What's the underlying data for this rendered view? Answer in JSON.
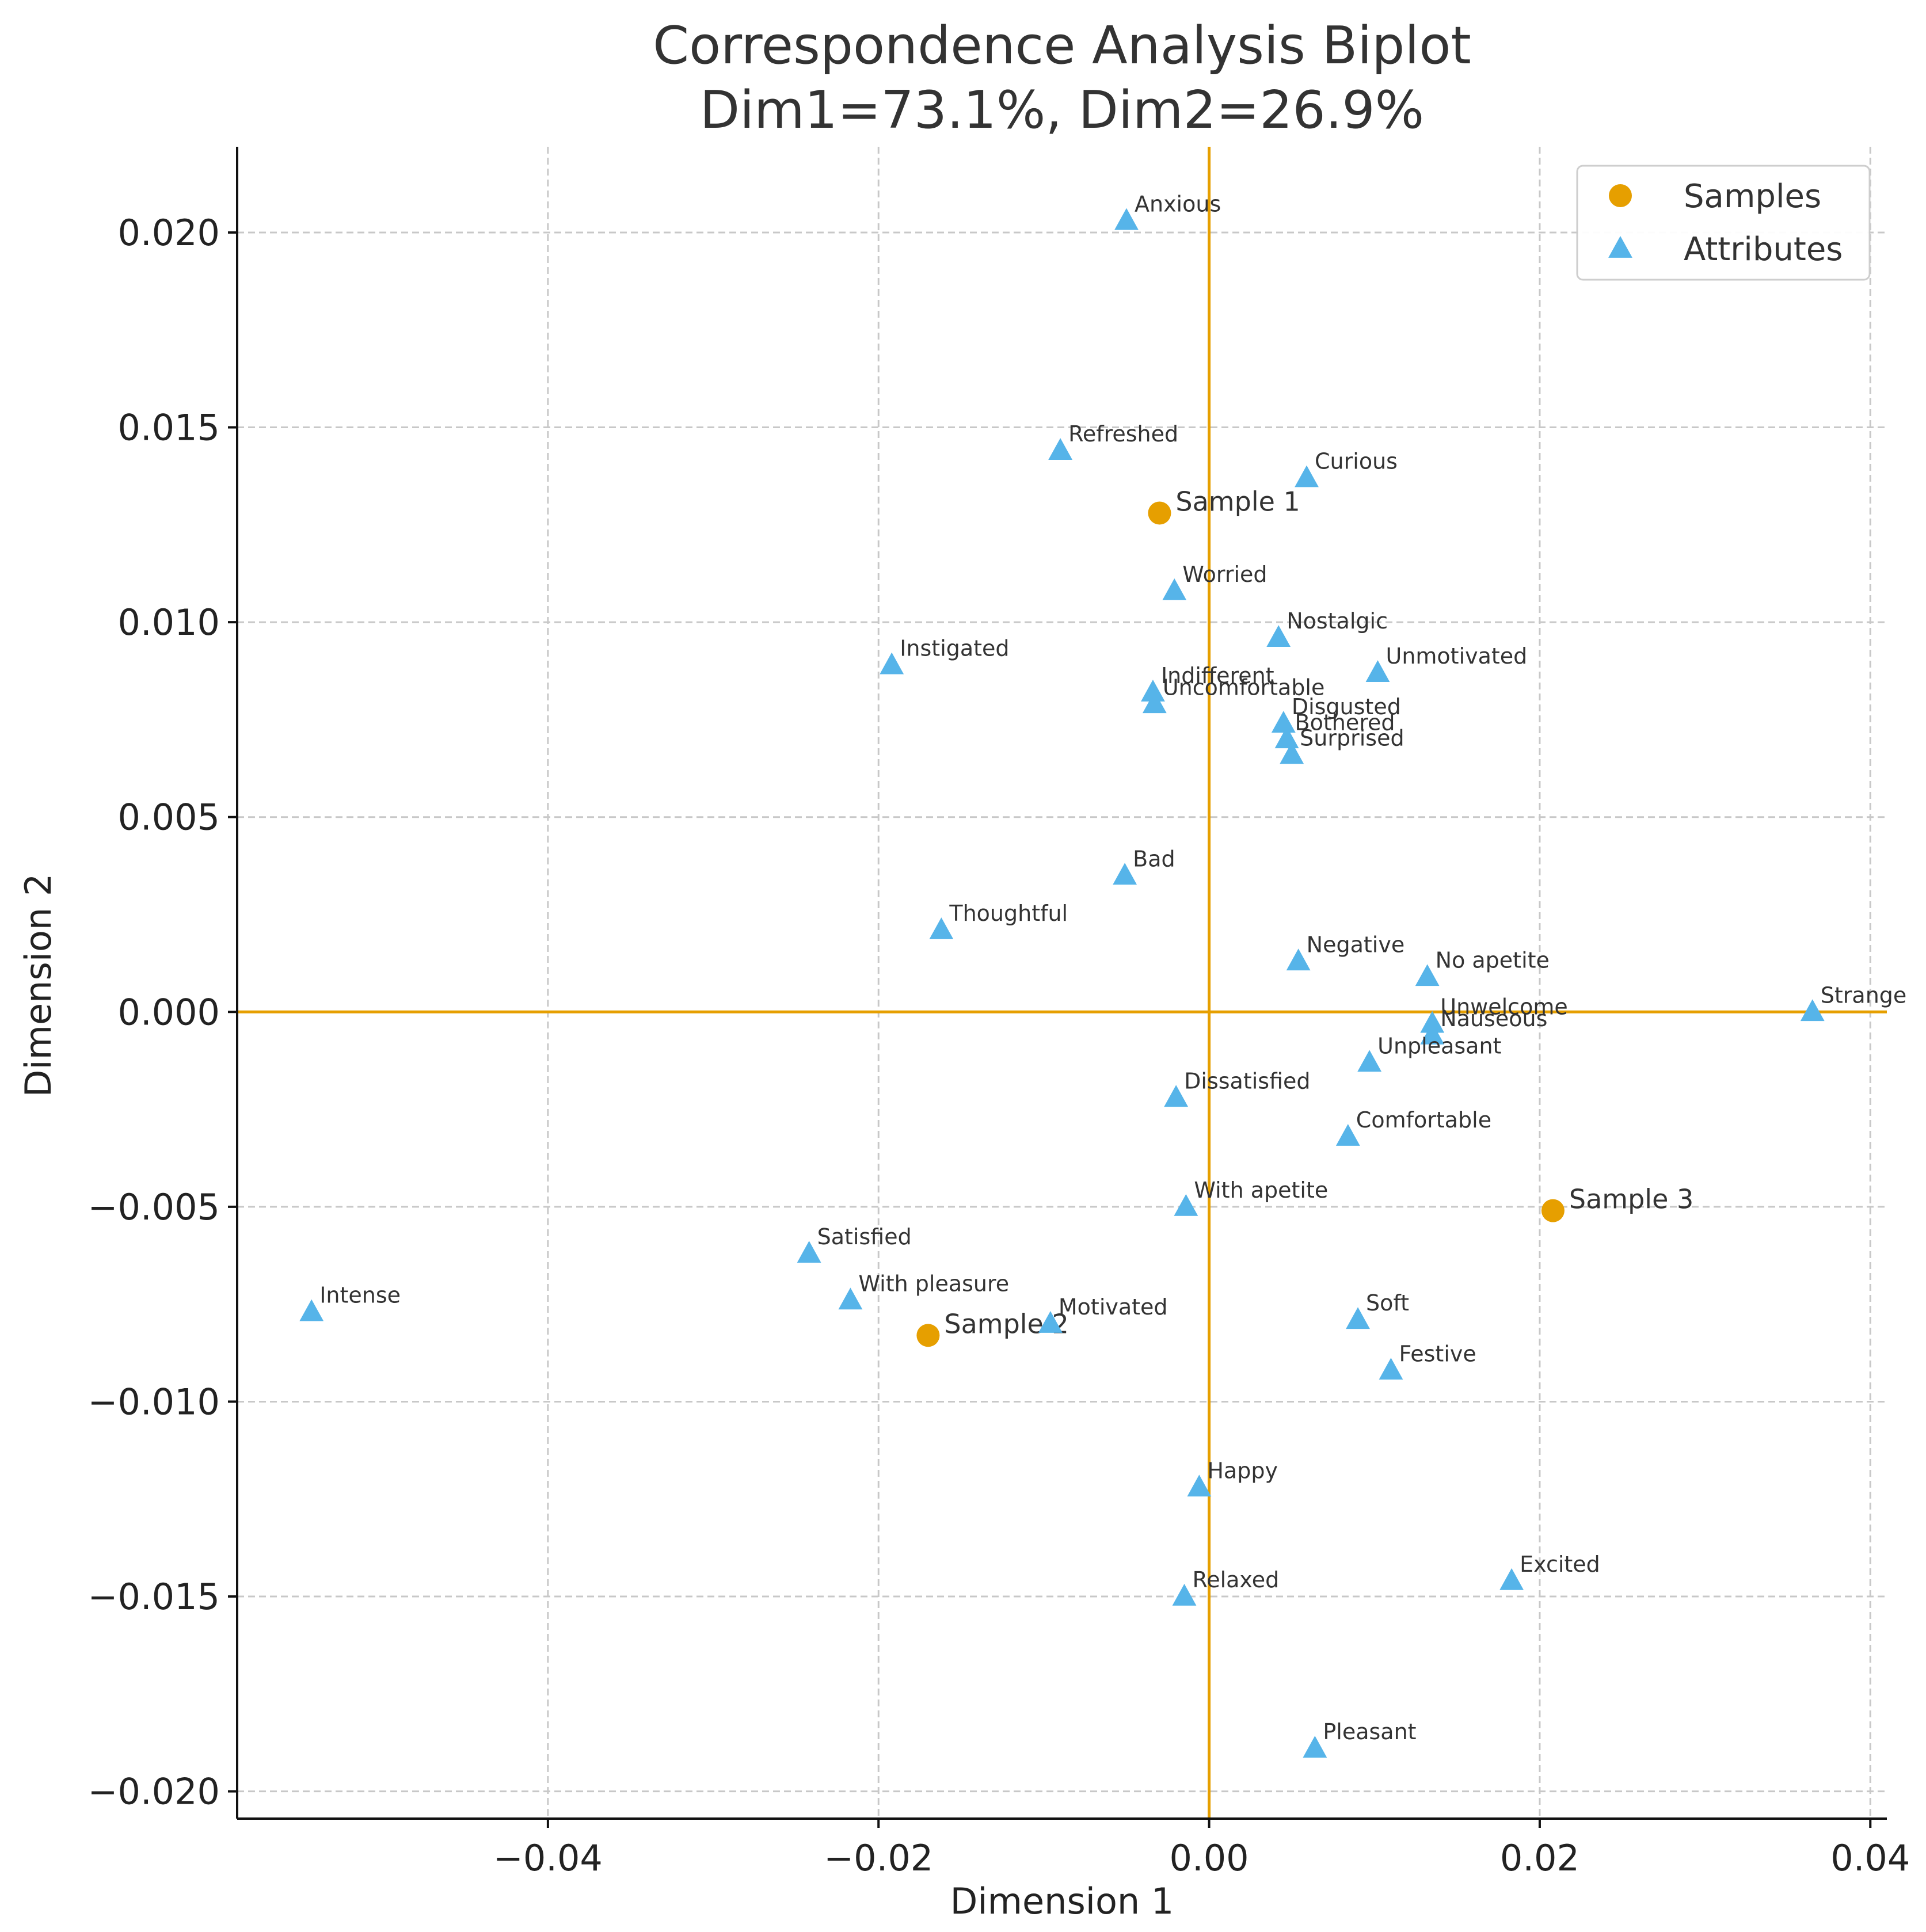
{
  "chart_data": {
    "type": "scatter",
    "title": "Correspondence Analysis Biplot",
    "subtitle": "Dim1=73.1%, Dim2=26.9%",
    "xlabel": "Dimension 1",
    "ylabel": "Dimension 2",
    "xlim": [
      -0.0588,
      0.041
    ],
    "ylim": [
      -0.0207,
      0.0222
    ],
    "xticks": [
      {
        "value": -0.04,
        "label": "−0.04"
      },
      {
        "value": -0.02,
        "label": "−0.02"
      },
      {
        "value": 0.0,
        "label": "0.00"
      },
      {
        "value": 0.02,
        "label": "0.02"
      },
      {
        "value": 0.04,
        "label": "0.04"
      }
    ],
    "yticks": [
      {
        "value": 0.02,
        "label": "0.020"
      },
      {
        "value": 0.015,
        "label": "0.015"
      },
      {
        "value": 0.01,
        "label": "0.010"
      },
      {
        "value": 0.005,
        "label": "0.005"
      },
      {
        "value": 0.0,
        "label": "0.000"
      },
      {
        "value": -0.005,
        "label": "−0.005"
      },
      {
        "value": -0.01,
        "label": "−0.010"
      },
      {
        "value": -0.015,
        "label": "−0.015"
      },
      {
        "value": -0.02,
        "label": "−0.020"
      }
    ],
    "grid": true,
    "legend_position": "top-right",
    "reference_lines": {
      "color": "#E69F00"
    },
    "series": [
      {
        "name": "Samples",
        "marker": "circle",
        "color": "#E69F00",
        "points": [
          {
            "label": "Sample 1",
            "x": -0.003,
            "y": 0.0128
          },
          {
            "label": "Sample 2",
            "x": -0.017,
            "y": -0.0083
          },
          {
            "label": "Sample 3",
            "x": 0.0208,
            "y": -0.0051
          }
        ]
      },
      {
        "name": "Attributes",
        "marker": "triangle",
        "color": "#56B4E9",
        "points": [
          {
            "label": "Anxious",
            "x": -0.005,
            "y": 0.0203
          },
          {
            "label": "Refreshed",
            "x": -0.009,
            "y": 0.0144
          },
          {
            "label": "Curious",
            "x": 0.0059,
            "y": 0.0137
          },
          {
            "label": "Worried",
            "x": -0.0021,
            "y": 0.0108
          },
          {
            "label": "Nostalgic",
            "x": 0.0042,
            "y": 0.0096
          },
          {
            "label": "Instigated",
            "x": -0.0192,
            "y": 0.0089
          },
          {
            "label": "Unmotivated",
            "x": 0.0102,
            "y": 0.0087
          },
          {
            "label": "Indifferent",
            "x": -0.0034,
            "y": 0.0082
          },
          {
            "label": "Uncomfortable",
            "x": -0.0033,
            "y": 0.0079
          },
          {
            "label": "Disgusted",
            "x": 0.0045,
            "y": 0.0074
          },
          {
            "label": "Bothered",
            "x": 0.0047,
            "y": 0.007
          },
          {
            "label": "Surprised",
            "x": 0.005,
            "y": 0.0066
          },
          {
            "label": "Bad",
            "x": -0.0051,
            "y": 0.0035
          },
          {
            "label": "Thoughtful",
            "x": -0.0162,
            "y": 0.0021
          },
          {
            "label": "Negative",
            "x": 0.0054,
            "y": 0.0013
          },
          {
            "label": "No apetite",
            "x": 0.0132,
            "y": 0.0009
          },
          {
            "label": "Strange",
            "x": 0.0365,
            "y": 0.0
          },
          {
            "label": "Unwelcome",
            "x": 0.0135,
            "y": -0.0003
          },
          {
            "label": "Nauseous",
            "x": 0.0135,
            "y": -0.0006
          },
          {
            "label": "Unpleasant",
            "x": 0.0097,
            "y": -0.0013
          },
          {
            "label": "Dissatisfied",
            "x": -0.002,
            "y": -0.0022
          },
          {
            "label": "Comfortable",
            "x": 0.0084,
            "y": -0.0032
          },
          {
            "label": "With apetite",
            "x": -0.0014,
            "y": -0.005
          },
          {
            "label": "Satisfied",
            "x": -0.0242,
            "y": -0.0062
          },
          {
            "label": "Intense",
            "x": -0.0543,
            "y": -0.0077
          },
          {
            "label": "With pleasure",
            "x": -0.0217,
            "y": -0.0074
          },
          {
            "label": "Motivated",
            "x": -0.0096,
            "y": -0.008
          },
          {
            "label": "Soft",
            "x": 0.009,
            "y": -0.0079
          },
          {
            "label": "Festive",
            "x": 0.011,
            "y": -0.0092
          },
          {
            "label": "Happy",
            "x": -0.0006,
            "y": -0.0122
          },
          {
            "label": "Relaxed",
            "x": -0.0015,
            "y": -0.015
          },
          {
            "label": "Excited",
            "x": 0.0183,
            "y": -0.0146
          },
          {
            "label": "Pleasant",
            "x": 0.0064,
            "y": -0.0189
          }
        ]
      }
    ]
  }
}
